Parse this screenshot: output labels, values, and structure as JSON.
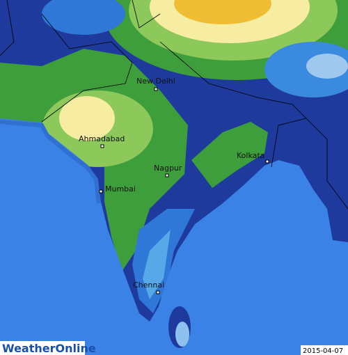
{
  "map": {
    "cities": [
      {
        "label": "New Delhi"
      },
      {
        "label": "Ahmadabad"
      },
      {
        "label": "Kolkata"
      },
      {
        "label": "Nagpur"
      },
      {
        "label": "Mumbai"
      },
      {
        "label": "Chennai"
      }
    ],
    "brand": "WeatherOnline",
    "date": "2015-04-07"
  }
}
